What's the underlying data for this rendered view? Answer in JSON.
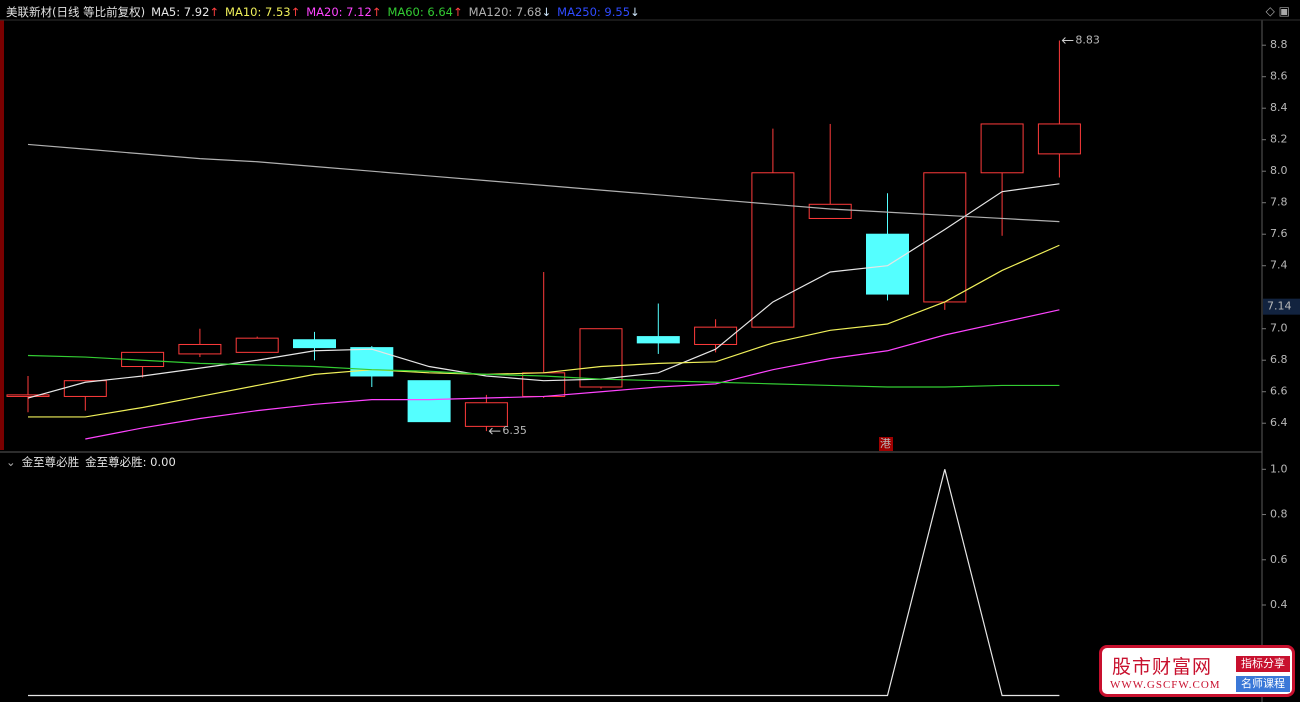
{
  "header": {
    "title": "美联新材(日线 等比前复权)"
  },
  "chart_data": [
    {
      "type": "candlestick",
      "categories": [
        null,
        null,
        null,
        null,
        null,
        null,
        null,
        null,
        null,
        null,
        null,
        null,
        null,
        null,
        null,
        null,
        null,
        null,
        null
      ],
      "open": [
        6.57,
        6.57,
        6.76,
        6.84,
        6.85,
        6.93,
        6.88,
        6.67,
        6.38,
        6.57,
        6.63,
        6.95,
        6.9,
        7.01,
        7.7,
        7.6,
        7.17,
        7.99,
        8.11
      ],
      "high": [
        6.7,
        6.67,
        6.85,
        7.0,
        6.95,
        6.98,
        6.89,
        6.67,
        6.58,
        7.36,
        7.0,
        7.16,
        7.06,
        8.27,
        8.3,
        7.86,
        7.99,
        8.3,
        8.83
      ],
      "low": [
        6.47,
        6.48,
        6.69,
        6.82,
        6.85,
        6.8,
        6.63,
        6.41,
        6.35,
        6.56,
        6.62,
        6.84,
        6.85,
        7.01,
        7.7,
        7.18,
        7.12,
        7.59,
        7.96
      ],
      "close": [
        6.58,
        6.67,
        6.85,
        6.9,
        6.94,
        6.88,
        6.7,
        6.41,
        6.53,
        6.72,
        7.0,
        6.91,
        7.01,
        7.99,
        7.79,
        7.22,
        7.99,
        8.3,
        8.3
      ],
      "up_color": "#ff3b3b",
      "down_color": "#54ffff",
      "series": [
        {
          "legend": "MA5: 7.92",
          "arrow": "↑",
          "color": "#e6e6e6",
          "values": [
            6.56,
            6.66,
            6.7,
            6.75,
            6.8,
            6.86,
            6.87,
            6.76,
            6.7,
            6.67,
            6.68,
            6.72,
            6.87,
            7.17,
            7.36,
            7.4,
            7.63,
            7.87,
            7.92
          ]
        },
        {
          "legend": "MA10: 7.53",
          "arrow": "↑",
          "color": "#f0f05a",
          "values": [
            6.44,
            6.44,
            6.5,
            6.57,
            6.64,
            6.71,
            6.74,
            6.72,
            6.71,
            6.72,
            6.76,
            6.78,
            6.79,
            6.91,
            6.99,
            7.03,
            7.17,
            7.37,
            7.53
          ]
        },
        {
          "legend": "MA20: 7.12",
          "arrow": "↑",
          "color": "#ff44ff",
          "values": [
            null,
            6.3,
            6.37,
            6.43,
            6.48,
            6.52,
            6.55,
            6.55,
            6.56,
            6.57,
            6.6,
            6.63,
            6.65,
            6.74,
            6.81,
            6.86,
            6.96,
            7.04,
            7.12
          ]
        },
        {
          "legend": "MA60: 6.64",
          "arrow": "↑",
          "color": "#33cc33",
          "values": [
            6.83,
            6.82,
            6.8,
            6.78,
            6.77,
            6.76,
            6.74,
            6.73,
            6.71,
            6.7,
            6.68,
            6.67,
            6.66,
            6.65,
            6.64,
            6.63,
            6.63,
            6.64,
            6.64
          ]
        },
        {
          "legend": "MA120: 7.68",
          "arrow": "↓",
          "color": "#b0b0b0",
          "values": [
            8.17,
            8.14,
            8.11,
            8.08,
            8.06,
            8.03,
            8.0,
            7.97,
            7.94,
            7.91,
            7.88,
            7.85,
            7.82,
            7.79,
            7.76,
            7.74,
            7.72,
            7.7,
            7.68
          ]
        },
        {
          "legend": "MA250: 9.55",
          "arrow": "↓",
          "color": "#2f4bff",
          "values": [
            null,
            null,
            null,
            null,
            null,
            null,
            null,
            null,
            null,
            null,
            null,
            null,
            null,
            null,
            null,
            null,
            null,
            null,
            null
          ]
        }
      ],
      "ylim": [
        6.23,
        8.96
      ],
      "yticks": [
        6.4,
        6.6,
        6.8,
        {
          "value": 7,
          "label": "7.0"
        },
        7.4,
        7.6,
        7.8,
        {
          "value": 8,
          "label": "8.0"
        },
        8.2,
        8.4,
        8.6,
        8.8
      ],
      "grid": false,
      "annotations": [
        {
          "text": "8.83",
          "index": 18,
          "at": 8.83
        },
        {
          "text": "6.35",
          "index": 8,
          "at": 6.35
        }
      ],
      "last_price": 7.14,
      "badge": "港"
    },
    {
      "type": "line",
      "title": "金至尊必胜",
      "categories": [
        null,
        null,
        null,
        null,
        null,
        null,
        null,
        null,
        null,
        null,
        null,
        null,
        null,
        null,
        null,
        null,
        null,
        null,
        null
      ],
      "series": [
        {
          "legend": "金至尊必胜: 0.00",
          "color": "#e6e6e6",
          "values": [
            0,
            0,
            0,
            0,
            0,
            0,
            0,
            0,
            0,
            0,
            0,
            0,
            0,
            0,
            0,
            0,
            1,
            0,
            0
          ]
        }
      ],
      "ylim": [
        -0.02,
        1.05
      ],
      "yticks": [
        0.4,
        0.6,
        0.8,
        {
          "value": 1,
          "label": "1.0"
        }
      ]
    }
  ],
  "watermark": {
    "name": "股市财富网",
    "url": "WWW.GSCFW.COM",
    "tag1": "指标分享",
    "tag2": "名师课程"
  }
}
